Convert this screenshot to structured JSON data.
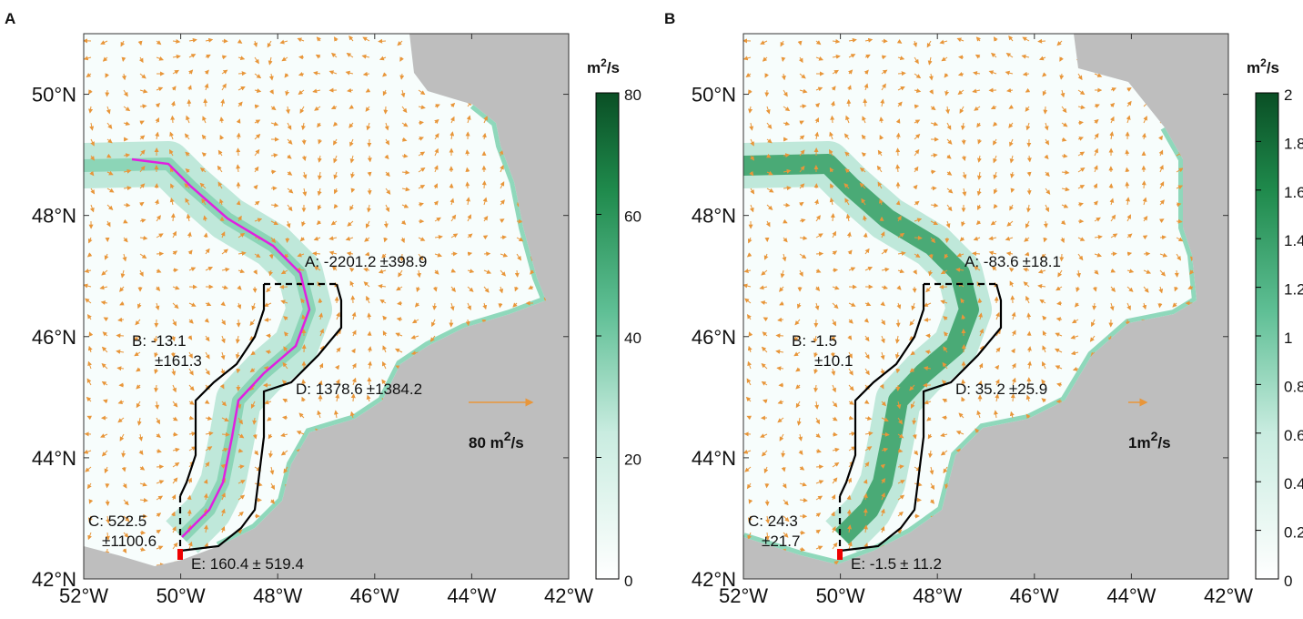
{
  "panels": [
    {
      "label": "A",
      "xlim": [
        -52,
        -42
      ],
      "ylim": [
        42,
        51
      ],
      "xticks": [
        {
          "value": -52,
          "label": "52°W"
        },
        {
          "value": -50,
          "label": "50°W"
        },
        {
          "value": -48,
          "label": "48°W"
        },
        {
          "value": -46,
          "label": "46°W"
        },
        {
          "value": -44,
          "label": "44°W"
        },
        {
          "value": -42,
          "label": "42°W"
        }
      ],
      "yticks": [
        {
          "value": 42,
          "label": "42°N"
        },
        {
          "value": 44,
          "label": "44°N"
        },
        {
          "value": 46,
          "label": "46°N"
        },
        {
          "value": 48,
          "label": "48°N"
        },
        {
          "value": 50,
          "label": "50°N"
        }
      ],
      "colorbar": {
        "unit": [
          "m",
          "2",
          "/s"
        ],
        "lim": [
          0,
          80
        ],
        "ticks": [
          0,
          20,
          40,
          60,
          80
        ]
      },
      "scale": [
        "80 m",
        "2",
        "/s"
      ],
      "sections": [
        {
          "label": "A: -2201.2",
          "error": "±398.9"
        },
        {
          "label": "B: -13.1",
          "error": "±161.3"
        },
        {
          "label": "D: 1378.6",
          "error": "±1384.2"
        },
        {
          "label": "C: 522.5",
          "error": "±1100.6"
        },
        {
          "label": "E: 160.4",
          "error": "± 519.4"
        }
      ]
    },
    {
      "label": "B",
      "xlim": [
        -52,
        -42
      ],
      "ylim": [
        42,
        51
      ],
      "xticks": [
        {
          "value": -52,
          "label": "52°W"
        },
        {
          "value": -50,
          "label": "50°W"
        },
        {
          "value": -48,
          "label": "48°W"
        },
        {
          "value": -46,
          "label": "46°W"
        },
        {
          "value": -44,
          "label": "44°W"
        },
        {
          "value": -42,
          "label": "42°W"
        }
      ],
      "yticks": [
        {
          "value": 42,
          "label": "42°N"
        },
        {
          "value": 44,
          "label": "44°N"
        },
        {
          "value": 46,
          "label": "46°N"
        },
        {
          "value": 48,
          "label": "48°N"
        },
        {
          "value": 50,
          "label": "50°N"
        }
      ],
      "colorbar": {
        "unit": [
          "m",
          "2",
          "/s"
        ],
        "lim": [
          0,
          2
        ],
        "ticks": [
          0,
          0.2,
          0.4,
          0.6,
          0.8,
          1,
          1.2,
          1.4,
          1.6,
          1.8,
          2
        ]
      },
      "scale": [
        "1m",
        "2",
        "/s"
      ],
      "sections": [
        {
          "label": "A: -83.6",
          "error": "±18.1"
        },
        {
          "label": "B: -1.5",
          "error": "±10.1"
        },
        {
          "label": "D: 35.2",
          "error": "±25.9"
        },
        {
          "label": "C: 24.3",
          "error": "±21.7"
        },
        {
          "label": "E: -1.5",
          "error": "± 11.2"
        }
      ]
    }
  ]
}
